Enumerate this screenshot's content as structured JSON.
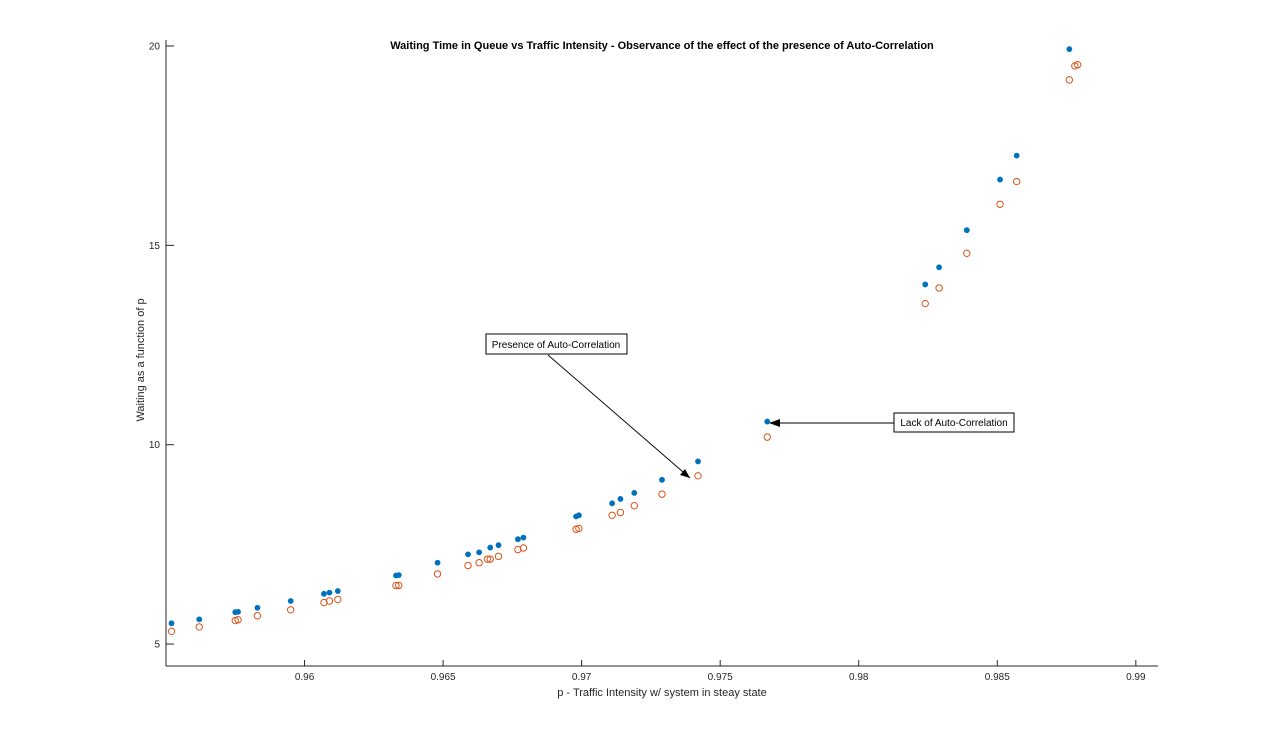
{
  "chart_data": {
    "type": "scatter",
    "title": "Waiting Time in Queue vs Traffic Intensity - Observance of the effect of the presence of Auto-Correlation",
    "xlabel": "p - Traffic Intensity w/ system in steay state",
    "ylabel": "Waiting as a function of p",
    "xlim": [
      0.955,
      0.9908
    ],
    "ylim": [
      4.45,
      20.15
    ],
    "xticks": [
      0.96,
      0.965,
      0.97,
      0.975,
      0.98,
      0.985,
      0.99
    ],
    "xtick_labels": [
      "0.96",
      "0.965",
      "0.97",
      "0.975",
      "0.98",
      "0.985",
      "0.99"
    ],
    "yticks": [
      5,
      10,
      15,
      20
    ],
    "ytick_labels": [
      "5",
      "10",
      "15",
      "20"
    ],
    "grid": false,
    "series": [
      {
        "marker": "filled-dot",
        "color": "#0072BD",
        "points": [
          [
            0.9552,
            5.52
          ],
          [
            0.9562,
            5.62
          ],
          [
            0.9575,
            5.8
          ],
          [
            0.9576,
            5.81
          ],
          [
            0.9583,
            5.91
          ],
          [
            0.9595,
            6.08
          ],
          [
            0.9607,
            6.26
          ],
          [
            0.9609,
            6.29
          ],
          [
            0.9612,
            6.33
          ],
          [
            0.9633,
            6.72
          ],
          [
            0.9634,
            6.73
          ],
          [
            0.9648,
            7.04
          ],
          [
            0.9659,
            7.25
          ],
          [
            0.9663,
            7.3
          ],
          [
            0.9667,
            7.42
          ],
          [
            0.967,
            7.48
          ],
          [
            0.9677,
            7.63
          ],
          [
            0.9679,
            7.67
          ],
          [
            0.9698,
            8.2
          ],
          [
            0.9699,
            8.23
          ],
          [
            0.9711,
            8.53
          ],
          [
            0.9714,
            8.64
          ],
          [
            0.9719,
            8.79
          ],
          [
            0.9729,
            9.12
          ],
          [
            0.9742,
            9.58
          ],
          [
            0.9767,
            10.58
          ],
          [
            0.9824,
            14.02
          ],
          [
            0.9829,
            14.45
          ],
          [
            0.9839,
            15.38
          ],
          [
            0.9851,
            16.65
          ],
          [
            0.9857,
            17.25
          ],
          [
            0.9876,
            19.92
          ]
        ]
      },
      {
        "marker": "open-circle",
        "color": "#D95319",
        "points": [
          [
            0.9552,
            5.32
          ],
          [
            0.9562,
            5.43
          ],
          [
            0.9575,
            5.59
          ],
          [
            0.9576,
            5.61
          ],
          [
            0.9583,
            5.71
          ],
          [
            0.9595,
            5.86
          ],
          [
            0.9607,
            6.04
          ],
          [
            0.9609,
            6.08
          ],
          [
            0.9612,
            6.12
          ],
          [
            0.9633,
            6.47
          ],
          [
            0.9634,
            6.47
          ],
          [
            0.9648,
            6.76
          ],
          [
            0.9659,
            6.97
          ],
          [
            0.9663,
            7.04
          ],
          [
            0.9666,
            7.13
          ],
          [
            0.9667,
            7.13
          ],
          [
            0.967,
            7.2
          ],
          [
            0.9677,
            7.37
          ],
          [
            0.9679,
            7.41
          ],
          [
            0.9698,
            7.88
          ],
          [
            0.9699,
            7.9
          ],
          [
            0.9711,
            8.23
          ],
          [
            0.9714,
            8.3
          ],
          [
            0.9719,
            8.47
          ],
          [
            0.9729,
            8.76
          ],
          [
            0.9742,
            9.22
          ],
          [
            0.9767,
            10.19
          ],
          [
            0.9824,
            13.54
          ],
          [
            0.9829,
            13.93
          ],
          [
            0.9839,
            14.8
          ],
          [
            0.9851,
            16.03
          ],
          [
            0.9857,
            16.6
          ],
          [
            0.9876,
            19.15
          ],
          [
            0.9878,
            19.5
          ],
          [
            0.9879,
            19.53
          ]
        ]
      }
    ],
    "annotations": [
      {
        "text": "Presence of Auto-Correlation",
        "points_to": [
          0.9741,
          9.26
        ],
        "position": "upper-left of arrow head"
      },
      {
        "text": "Lack of Auto-Correlation",
        "points_to": [
          0.9768,
          10.64
        ],
        "position": "right of arrow head"
      }
    ]
  }
}
